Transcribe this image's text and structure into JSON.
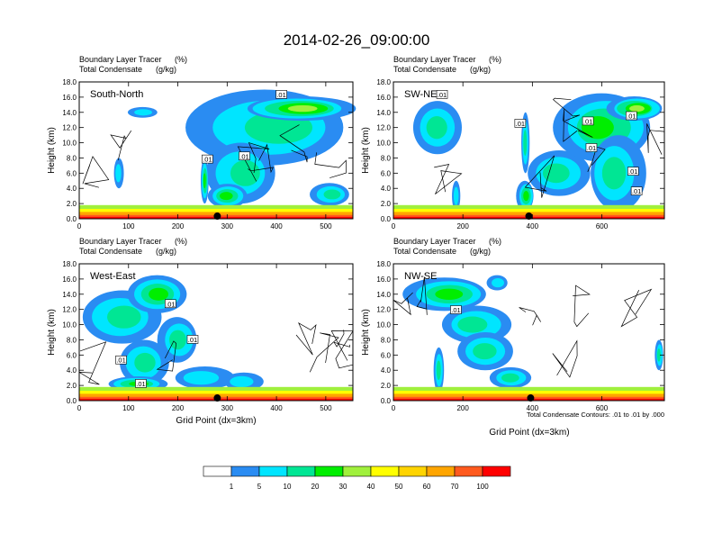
{
  "figure": {
    "title": "2014-02-26_09:00:00",
    "shading_label": "Boundary Layer Tracer",
    "shading_units": "(%)",
    "contour_label": "Total Condensate",
    "contour_units": "(g/kg)",
    "contour_note": "Total Condensate Contours: .01 to .01 by .000",
    "xaxis_label": "Grid Point (dx=3km)",
    "yaxis_label": "Height (km)"
  },
  "chart_data": {
    "type": "heatmap",
    "title": "2014-02-26_09:00:00",
    "xlabel": "Grid Point (dx=3km)",
    "ylabel": "Height (km)",
    "ylim": [
      0,
      18
    ],
    "yticks": [
      "0.0",
      "2.0",
      "4.0",
      "6.0",
      "8.0",
      "10.0",
      "12.0",
      "14.0",
      "16.0",
      "18.0"
    ],
    "colorbar": {
      "levels": [
        "1",
        "5",
        "10",
        "20",
        "30",
        "40",
        "50",
        "60",
        "70",
        "100"
      ],
      "colors": [
        "#ffffff",
        "#2a8cf2",
        "#00e5ff",
        "#00e694",
        "#00ee00",
        "#a0f03c",
        "#ffff00",
        "#ffd400",
        "#ffa500",
        "#ff5a1e",
        "#ff0000"
      ]
    },
    "panels": [
      {
        "name": "South-North",
        "xlim": [
          0,
          555
        ],
        "xticks": [
          0,
          100,
          200,
          300,
          400,
          500
        ],
        "marker_x": 280,
        "contour_labels": [
          {
            "x": 410,
            "z": 16.3,
            "text": ".01"
          },
          {
            "x": 260,
            "z": 7.8,
            "text": ".01"
          },
          {
            "x": 335,
            "z": 8.2,
            "text": ".01"
          }
        ]
      },
      {
        "name": "SW-NE",
        "xlim": [
          0,
          780
        ],
        "xticks": [
          0,
          200,
          400,
          600
        ],
        "marker_x": 390,
        "contour_labels": [
          {
            "x": 140,
            "z": 16.3,
            "text": ".01"
          },
          {
            "x": 365,
            "z": 12.5,
            "text": ".01"
          },
          {
            "x": 560,
            "z": 12.8,
            "text": ".01"
          },
          {
            "x": 570,
            "z": 9.3,
            "text": ".01"
          },
          {
            "x": 685,
            "z": 13.5,
            "text": ".01"
          },
          {
            "x": 690,
            "z": 6.2,
            "text": ".01"
          },
          {
            "x": 700,
            "z": 3.6,
            "text": ".01"
          }
        ]
      },
      {
        "name": "West-East",
        "xlim": [
          0,
          555
        ],
        "xticks": [
          0,
          100,
          200,
          300,
          400,
          500
        ],
        "marker_x": 280,
        "contour_labels": [
          {
            "x": 185,
            "z": 12.7,
            "text": ".01"
          },
          {
            "x": 230,
            "z": 8.0,
            "text": ".01"
          },
          {
            "x": 85,
            "z": 5.3,
            "text": ".01"
          },
          {
            "x": 125,
            "z": 2.2,
            "text": ".01"
          }
        ]
      },
      {
        "name": "NW-SE",
        "xlim": [
          0,
          780
        ],
        "xticks": [
          0,
          200,
          400,
          600
        ],
        "marker_x": 395,
        "contour_labels": [
          {
            "x": 180,
            "z": 11.9,
            "text": ".01"
          }
        ]
      }
    ]
  }
}
